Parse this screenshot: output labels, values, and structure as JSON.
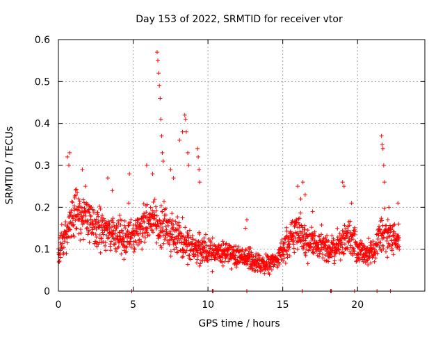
{
  "chart_data": {
    "type": "scatter",
    "title": "Day 153 of 2022, SRMTID for receiver vtor",
    "xlabel": "GPS time / hours",
    "ylabel": "SRMTID / TECUs",
    "xlim": [
      0,
      24.5
    ],
    "ylim": [
      0,
      0.6
    ],
    "x_ticks": [
      0,
      5,
      10,
      15,
      20
    ],
    "y_ticks": [
      0,
      0.1,
      0.2,
      0.3,
      0.4,
      0.5,
      0.6
    ],
    "x_tick_labels": [
      "0",
      "5",
      "10",
      "15",
      "20"
    ],
    "y_tick_labels": [
      "0",
      "0.1",
      "0.2",
      "0.3",
      "0.4",
      "0.5",
      "0.6"
    ],
    "grid": true,
    "marker": "+",
    "series": [
      {
        "name": "SRMTID",
        "color": "#ff0000",
        "trend": [
          [
            0.0,
            0.09
          ],
          [
            0.3,
            0.12
          ],
          [
            0.7,
            0.15
          ],
          [
            1.0,
            0.17
          ],
          [
            1.5,
            0.18
          ],
          [
            2.0,
            0.17
          ],
          [
            2.5,
            0.15
          ],
          [
            3.0,
            0.15
          ],
          [
            3.5,
            0.14
          ],
          [
            4.0,
            0.14
          ],
          [
            4.5,
            0.13
          ],
          [
            5.0,
            0.13
          ],
          [
            5.5,
            0.15
          ],
          [
            6.0,
            0.17
          ],
          [
            6.5,
            0.16
          ],
          [
            7.0,
            0.16
          ],
          [
            7.5,
            0.14
          ],
          [
            8.0,
            0.13
          ],
          [
            8.5,
            0.12
          ],
          [
            9.0,
            0.11
          ],
          [
            9.5,
            0.1
          ],
          [
            10.0,
            0.09
          ],
          [
            10.5,
            0.09
          ],
          [
            11.0,
            0.09
          ],
          [
            11.5,
            0.09
          ],
          [
            12.0,
            0.08
          ],
          [
            12.5,
            0.08
          ],
          [
            13.0,
            0.07
          ],
          [
            13.5,
            0.065
          ],
          [
            14.0,
            0.065
          ],
          [
            14.5,
            0.07
          ],
          [
            15.0,
            0.1
          ],
          [
            15.5,
            0.12
          ],
          [
            16.0,
            0.14
          ],
          [
            16.5,
            0.12
          ],
          [
            17.0,
            0.11
          ],
          [
            17.5,
            0.11
          ],
          [
            18.0,
            0.1
          ],
          [
            18.5,
            0.1
          ],
          [
            19.0,
            0.12
          ],
          [
            19.5,
            0.13
          ],
          [
            20.0,
            0.1
          ],
          [
            20.5,
            0.09
          ],
          [
            21.0,
            0.09
          ],
          [
            21.5,
            0.13
          ],
          [
            22.0,
            0.14
          ],
          [
            22.5,
            0.13
          ],
          [
            22.8,
            0.12
          ]
        ],
        "spikes": [
          [
            0.6,
            0.32
          ],
          [
            0.7,
            0.3
          ],
          [
            0.75,
            0.33
          ],
          [
            1.6,
            0.29
          ],
          [
            1.8,
            0.25
          ],
          [
            3.3,
            0.27
          ],
          [
            3.6,
            0.24
          ],
          [
            4.7,
            0.21
          ],
          [
            4.75,
            0.28
          ],
          [
            5.9,
            0.3
          ],
          [
            6.3,
            0.28
          ],
          [
            6.6,
            0.57
          ],
          [
            6.65,
            0.55
          ],
          [
            6.7,
            0.52
          ],
          [
            6.75,
            0.49
          ],
          [
            6.8,
            0.46
          ],
          [
            6.85,
            0.41
          ],
          [
            6.9,
            0.37
          ],
          [
            6.95,
            0.33
          ],
          [
            7.0,
            0.31
          ],
          [
            7.5,
            0.29
          ],
          [
            7.7,
            0.27
          ],
          [
            8.1,
            0.36
          ],
          [
            8.3,
            0.38
          ],
          [
            8.45,
            0.42
          ],
          [
            8.5,
            0.41
          ],
          [
            8.55,
            0.38
          ],
          [
            8.65,
            0.33
          ],
          [
            8.7,
            0.3
          ],
          [
            9.3,
            0.34
          ],
          [
            9.35,
            0.32
          ],
          [
            9.4,
            0.29
          ],
          [
            9.45,
            0.26
          ],
          [
            12.5,
            0.15
          ],
          [
            12.6,
            0.17
          ],
          [
            16.0,
            0.25
          ],
          [
            16.2,
            0.22
          ],
          [
            16.35,
            0.26
          ],
          [
            16.5,
            0.23
          ],
          [
            17.0,
            0.19
          ],
          [
            19.0,
            0.26
          ],
          [
            19.1,
            0.25
          ],
          [
            19.6,
            0.21
          ],
          [
            21.6,
            0.37
          ],
          [
            21.65,
            0.35
          ],
          [
            21.7,
            0.34
          ],
          [
            21.75,
            0.3
          ],
          [
            21.8,
            0.26
          ],
          [
            22.1,
            0.2
          ],
          [
            22.7,
            0.21
          ]
        ],
        "baseline_points": [
          4.9,
          10.3,
          10.35,
          12.6,
          16.3,
          18.2,
          18.25,
          19.8,
          21.3,
          22.2
        ]
      }
    ]
  }
}
